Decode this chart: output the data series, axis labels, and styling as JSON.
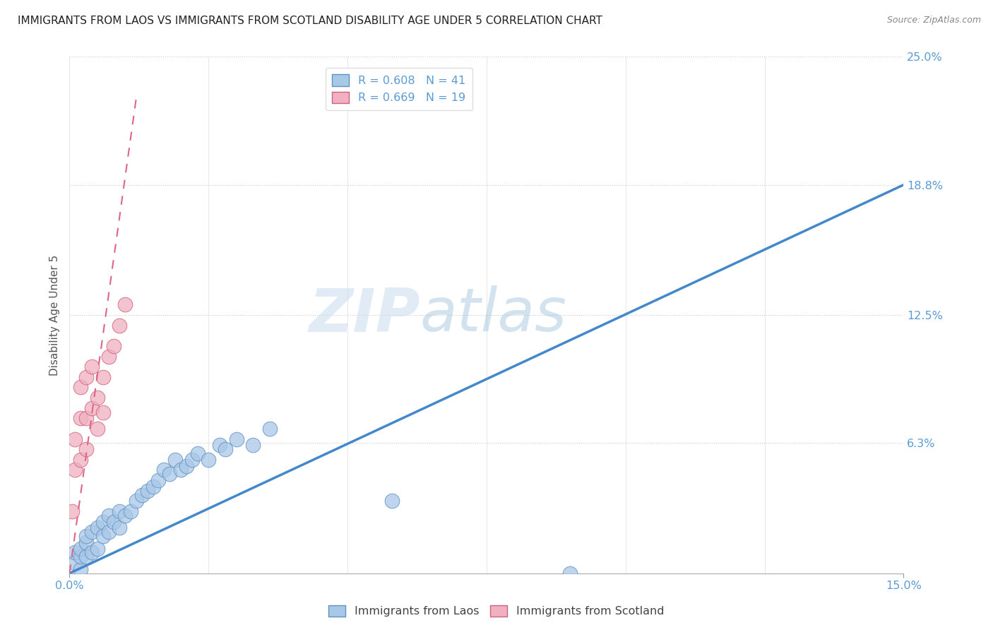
{
  "title": "IMMIGRANTS FROM LAOS VS IMMIGRANTS FROM SCOTLAND DISABILITY AGE UNDER 5 CORRELATION CHART",
  "source_text": "Source: ZipAtlas.com",
  "ylabel": "Disability Age Under 5",
  "xlim": [
    0.0,
    0.15
  ],
  "ylim": [
    0.0,
    0.25
  ],
  "yticks": [
    0.0,
    0.063,
    0.125,
    0.188,
    0.25
  ],
  "ytick_labels": [
    "",
    "6.3%",
    "12.5%",
    "18.8%",
    "25.0%"
  ],
  "xticks": [
    0.0,
    0.15
  ],
  "xtick_labels": [
    "0.0%",
    "15.0%"
  ],
  "legend_laos": "R = 0.608   N = 41",
  "legend_scotland": "R = 0.669   N = 19",
  "watermark_ZIP": "ZIP",
  "watermark_atlas": "atlas",
  "blue_scatter_color": "#a8c8e8",
  "blue_scatter_edge": "#6090c0",
  "pink_scatter_color": "#f0b0c0",
  "pink_scatter_edge": "#d06080",
  "blue_line_color": "#4488cc",
  "pink_line_color": "#dd6688",
  "blue_trend_x": [
    0.0,
    0.15
  ],
  "blue_trend_y": [
    0.0,
    0.188
  ],
  "pink_trend_x": [
    0.0,
    0.012
  ],
  "pink_trend_y": [
    0.0,
    0.23
  ],
  "laos_x": [
    0.001,
    0.001,
    0.002,
    0.002,
    0.002,
    0.003,
    0.003,
    0.003,
    0.004,
    0.004,
    0.005,
    0.005,
    0.006,
    0.006,
    0.007,
    0.007,
    0.008,
    0.009,
    0.009,
    0.01,
    0.011,
    0.012,
    0.013,
    0.014,
    0.015,
    0.016,
    0.017,
    0.018,
    0.019,
    0.02,
    0.021,
    0.022,
    0.023,
    0.025,
    0.027,
    0.028,
    0.03,
    0.033,
    0.036,
    0.058,
    0.09
  ],
  "laos_y": [
    0.005,
    0.01,
    0.002,
    0.008,
    0.012,
    0.008,
    0.015,
    0.018,
    0.01,
    0.02,
    0.012,
    0.022,
    0.018,
    0.025,
    0.02,
    0.028,
    0.025,
    0.022,
    0.03,
    0.028,
    0.03,
    0.035,
    0.038,
    0.04,
    0.042,
    0.045,
    0.05,
    0.048,
    0.055,
    0.05,
    0.052,
    0.055,
    0.058,
    0.055,
    0.062,
    0.06,
    0.065,
    0.062,
    0.07,
    0.035,
    0.0
  ],
  "scotland_x": [
    0.0005,
    0.001,
    0.001,
    0.002,
    0.002,
    0.002,
    0.003,
    0.003,
    0.003,
    0.004,
    0.004,
    0.005,
    0.005,
    0.006,
    0.006,
    0.007,
    0.008,
    0.009,
    0.01
  ],
  "scotland_y": [
    0.03,
    0.05,
    0.065,
    0.055,
    0.075,
    0.09,
    0.06,
    0.075,
    0.095,
    0.08,
    0.1,
    0.07,
    0.085,
    0.078,
    0.095,
    0.105,
    0.11,
    0.12,
    0.13
  ],
  "background_color": "#ffffff",
  "grid_color": "#cccccc",
  "title_fontsize": 11,
  "tick_color": "#5b9bd5",
  "axis_label_color": "#555555"
}
